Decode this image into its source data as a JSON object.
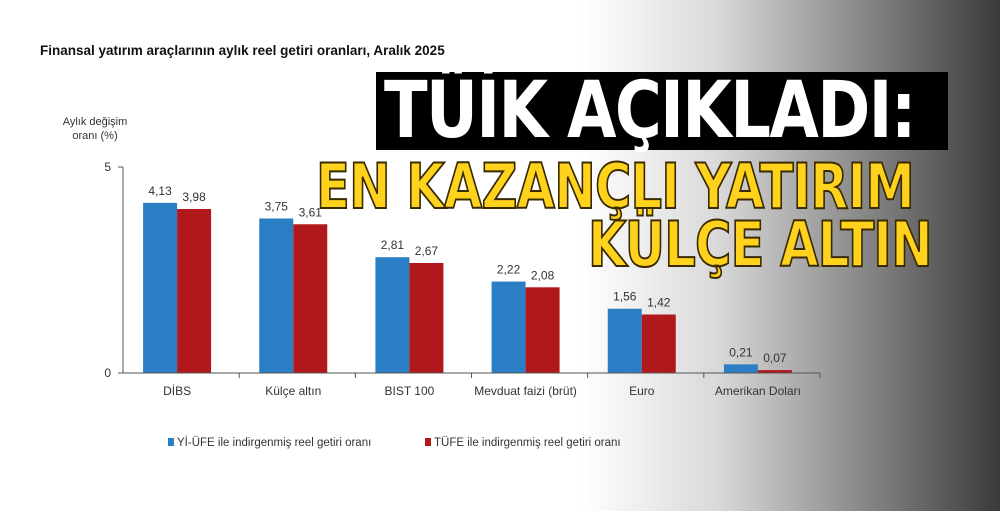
{
  "headline": {
    "line1": "TÜİK AÇIKLADI:",
    "line2": "EN KAZANÇLI YATIRIM",
    "line3": "KÜLÇE ALTIN"
  },
  "chart_data": {
    "type": "bar",
    "title": "Finansal yatırım araçlarının aylık reel getiri oranları, Aralık 2025",
    "ylabel_line1": "Aylık değişim",
    "ylabel_line2": "oranı (%)",
    "ylim": [
      0,
      5
    ],
    "yticks": [
      "0",
      "5"
    ],
    "grid": false,
    "legend_placement": "bottom",
    "categories": [
      "DİBS",
      "Külçe altın",
      "BIST 100",
      "Mevduat faizi (brüt)",
      "Euro",
      "Amerikan Doları"
    ],
    "series": [
      {
        "name": "Yİ-ÜFE ile indirgenmiş reel getiri oranı",
        "color": "#2a7fc4",
        "values": [
          4.13,
          3.75,
          2.81,
          2.22,
          1.56,
          0.21
        ],
        "labels": [
          "4,13",
          "3,75",
          "2,81",
          "2,22",
          "1,56",
          "0,21"
        ]
      },
      {
        "name": "TÜFE ile indirgenmiş reel getiri oranı",
        "color": "#b0181c",
        "values": [
          3.98,
          3.61,
          2.67,
          2.08,
          1.42,
          0.07
        ],
        "labels": [
          "3,98",
          "3,61",
          "2,67",
          "2,08",
          "1,42",
          "0,07"
        ]
      }
    ]
  }
}
